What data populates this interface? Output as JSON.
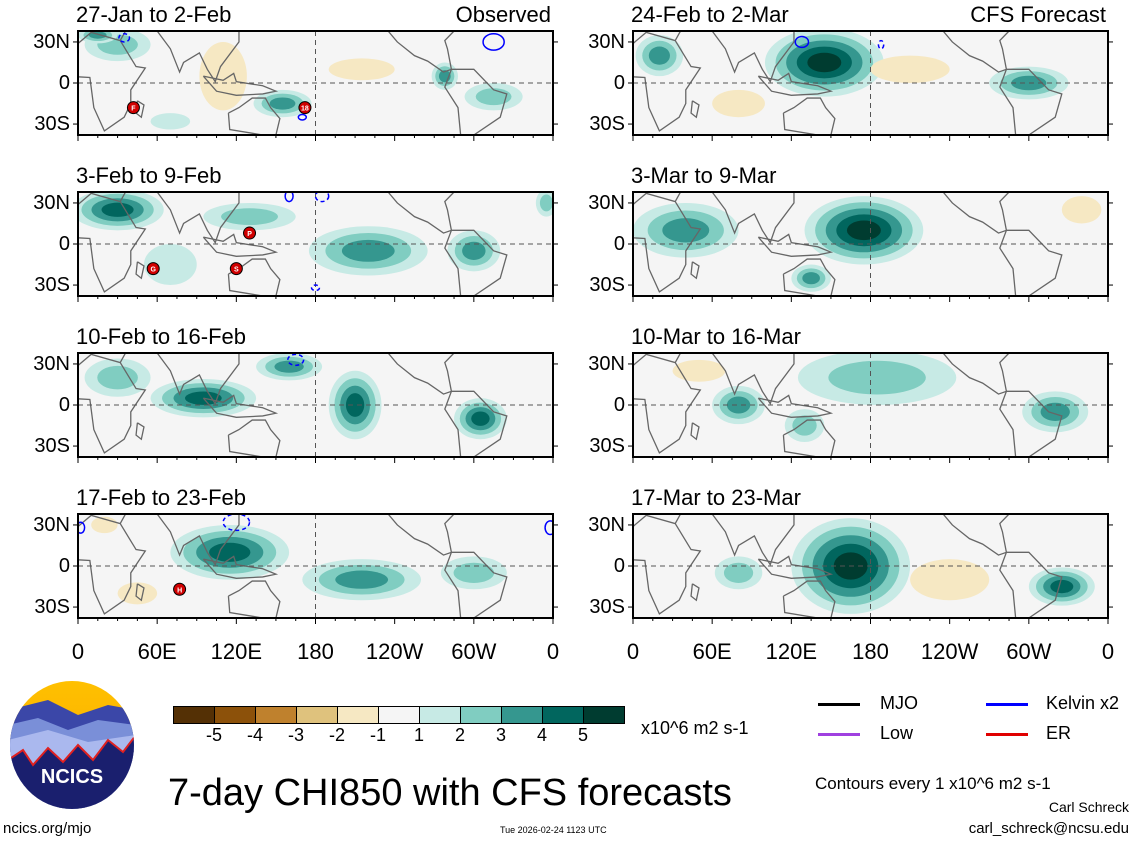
{
  "panels": [
    {
      "title": "27-Jan to 2-Feb",
      "tag": "Observed",
      "col": 0,
      "row": 0,
      "blobs": [
        [
          30,
          28,
          25,
          12,
          2
        ],
        [
          15,
          35,
          15,
          6,
          3
        ],
        [
          155,
          -15,
          22,
          10,
          3
        ],
        [
          278,
          5,
          10,
          10,
          3
        ],
        [
          315,
          -10,
          22,
          10,
          2
        ],
        [
          110,
          5,
          18,
          25,
          -1
        ],
        [
          215,
          10,
          25,
          8,
          -1
        ],
        [
          70,
          -28,
          15,
          6,
          1
        ]
      ],
      "kelvin": [
        [
          315,
          30,
          8,
          6,
          false
        ],
        [
          35,
          33,
          4,
          3,
          true
        ],
        [
          170,
          -25,
          3,
          2,
          false
        ]
      ],
      "cyclones": [
        [
          "F",
          42,
          -18
        ],
        [
          "18",
          172,
          -18
        ]
      ]
    },
    {
      "title": "3-Feb to 9-Feb",
      "col": 0,
      "row": 1,
      "blobs": [
        [
          30,
          25,
          35,
          15,
          4
        ],
        [
          130,
          20,
          35,
          10,
          2
        ],
        [
          70,
          -15,
          20,
          15,
          1
        ],
        [
          220,
          -5,
          45,
          18,
          3
        ],
        [
          300,
          -5,
          20,
          15,
          3
        ],
        [
          355,
          30,
          8,
          10,
          2
        ]
      ],
      "kelvin": [
        [
          160,
          35,
          3,
          4,
          false
        ],
        [
          185,
          35,
          5,
          4,
          true
        ],
        [
          180,
          -32,
          3,
          2,
          true
        ]
      ],
      "cyclones": [
        [
          "P",
          130,
          8
        ],
        [
          "G",
          57,
          -18
        ],
        [
          "S",
          120,
          -18
        ]
      ]
    },
    {
      "title": "10-Feb to 16-Feb",
      "col": 0,
      "row": 2,
      "blobs": [
        [
          30,
          20,
          25,
          14,
          2
        ],
        [
          95,
          5,
          40,
          14,
          4
        ],
        [
          160,
          28,
          25,
          10,
          3
        ],
        [
          210,
          0,
          20,
          25,
          4
        ],
        [
          305,
          -10,
          20,
          15,
          4
        ]
      ],
      "kelvin": [
        [
          165,
          33,
          6,
          4,
          true
        ]
      ],
      "cyclones": []
    },
    {
      "title": "17-Feb to 23-Feb",
      "col": 0,
      "row": 3,
      "blobs": [
        [
          115,
          10,
          45,
          20,
          4
        ],
        [
          215,
          -10,
          45,
          15,
          3
        ],
        [
          300,
          -5,
          25,
          12,
          2
        ],
        [
          45,
          -20,
          15,
          8,
          -1
        ],
        [
          20,
          30,
          10,
          6,
          -1
        ]
      ],
      "kelvin": [
        [
          120,
          32,
          10,
          6,
          true
        ],
        [
          358,
          28,
          4,
          5,
          false
        ],
        [
          2,
          28,
          3,
          4,
          false
        ]
      ],
      "cyclones": [
        [
          "H",
          77,
          -17
        ]
      ]
    },
    {
      "title": "24-Feb to 2-Mar",
      "tag": "CFS Forecast",
      "col": 1,
      "row": 0,
      "blobs": [
        [
          145,
          15,
          45,
          25,
          5
        ],
        [
          20,
          20,
          18,
          15,
          3
        ],
        [
          300,
          0,
          30,
          12,
          3
        ],
        [
          80,
          -15,
          20,
          10,
          -1
        ],
        [
          210,
          10,
          30,
          10,
          -1
        ]
      ],
      "kelvin": [
        [
          128,
          30,
          5,
          4,
          false
        ],
        [
          188,
          28,
          2,
          3,
          true
        ]
      ],
      "cyclones": []
    },
    {
      "title": "3-Mar to 9-Mar",
      "col": 1,
      "row": 1,
      "blobs": [
        [
          175,
          10,
          45,
          25,
          5
        ],
        [
          40,
          10,
          40,
          20,
          3
        ],
        [
          135,
          -25,
          15,
          10,
          3
        ],
        [
          340,
          25,
          15,
          10,
          -1
        ]
      ],
      "kelvin": [],
      "cyclones": []
    },
    {
      "title": "10-Mar to 16-Mar",
      "col": 1,
      "row": 2,
      "blobs": [
        [
          185,
          20,
          60,
          20,
          2
        ],
        [
          80,
          0,
          20,
          14,
          3
        ],
        [
          130,
          -15,
          15,
          12,
          2
        ],
        [
          320,
          -5,
          25,
          15,
          3
        ],
        [
          50,
          25,
          20,
          8,
          -1
        ]
      ],
      "kelvin": [],
      "cyclones": []
    },
    {
      "title": "17-Mar to 23-Mar",
      "col": 1,
      "row": 3,
      "blobs": [
        [
          165,
          0,
          45,
          35,
          5
        ],
        [
          80,
          -5,
          18,
          12,
          2
        ],
        [
          325,
          -15,
          25,
          14,
          4
        ],
        [
          240,
          -10,
          30,
          15,
          -1
        ]
      ],
      "kelvin": [],
      "cyclones": []
    }
  ],
  "y_axis": [
    "30N",
    "0",
    "30S"
  ],
  "x_axis": [
    "0",
    "60E",
    "120E",
    "180",
    "120W",
    "60W",
    "0"
  ],
  "colorbar": {
    "labels": [
      "-5",
      "-4",
      "-3",
      "-2",
      "-1",
      "1",
      "2",
      "3",
      "4",
      "5"
    ],
    "units": "x10^6 m2 s-1",
    "colors": [
      "#543005",
      "#8c510a",
      "#bf812d",
      "#dfc27d",
      "#f6e8c3",
      "#f5f5f5",
      "#c7eae5",
      "#80cdc1",
      "#35978f",
      "#01665e",
      "#003c30"
    ]
  },
  "legend": [
    {
      "label": "MJO",
      "color": "#000000"
    },
    {
      "label": "Kelvin x2",
      "color": "#0000ff"
    },
    {
      "label": "Low",
      "color": "#a040e0"
    },
    {
      "label": "ER",
      "color": "#e00000"
    }
  ],
  "main_title": "7-day CHI850 with CFS forecasts",
  "contours_note": "Contours every 1 x10^6 m2 s-1",
  "author": "Carl Schreck",
  "email": "carl_schreck@ncsu.edu",
  "url": "ncics.org/mjo",
  "timestamp": "Tue 2026-02-24 1123 UTC",
  "logo_text": "NCICS"
}
